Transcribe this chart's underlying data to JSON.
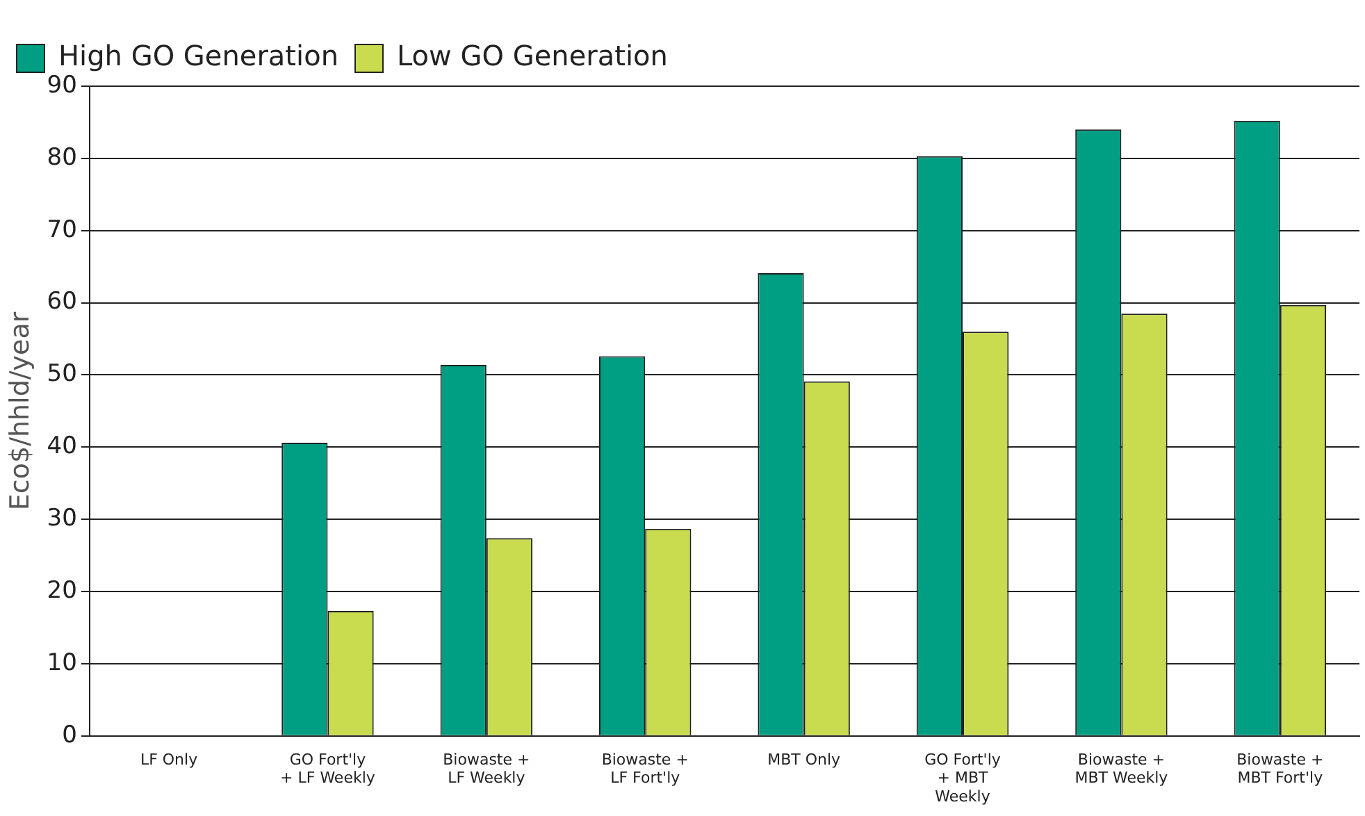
{
  "chart_data": {
    "type": "bar",
    "ylabel": "Eco$/hhld/year",
    "categories": [
      "LF Only",
      "GO Fort'ly + LF Weekly",
      "Biowaste + LF Weekly",
      "Biowaste + LF Fort'ly",
      "MBT Only",
      "GO Fort'ly + MBT Weekly",
      "Biowaste + MBT Weekly",
      "Biowaste + MBT Fort'ly"
    ],
    "series": [
      {
        "name": "High GO Generation",
        "color": "#009e82",
        "values": [
          0,
          40.6,
          51.4,
          52.6,
          64.1,
          80.3,
          84.0,
          85.2
        ]
      },
      {
        "name": "Low GO Generation",
        "color": "#c9dc50",
        "values": [
          0,
          17.3,
          27.4,
          28.7,
          49.1,
          56.0,
          58.5,
          59.7
        ]
      }
    ],
    "ylim": [
      0,
      90
    ],
    "yticks": [
      0,
      10,
      20,
      30,
      40,
      50,
      60,
      70,
      80,
      90
    ],
    "grid": "y",
    "legend": "top left"
  }
}
